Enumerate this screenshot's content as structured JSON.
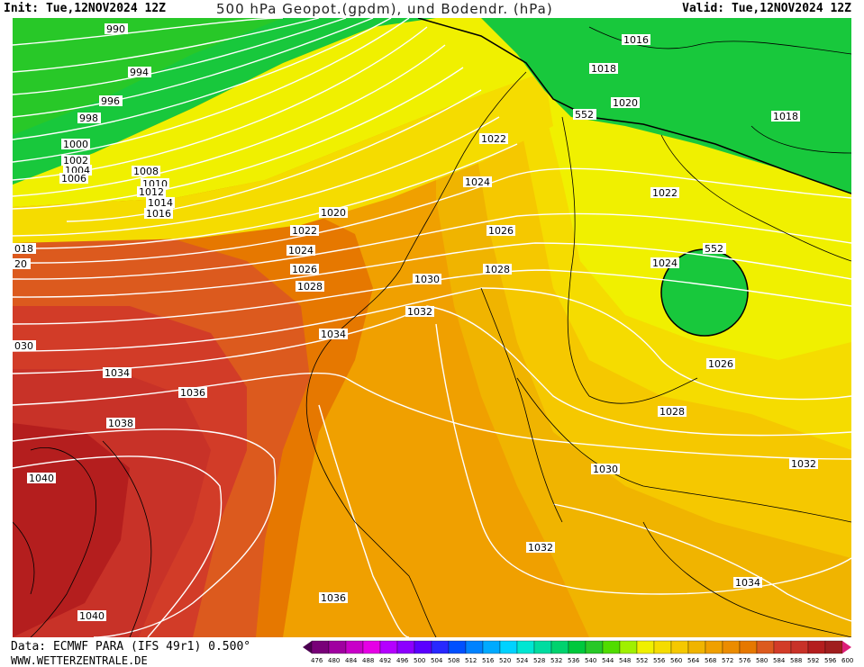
{
  "header": {
    "init": "Init: Tue,12NOV2024 12Z",
    "title": "500 hPa Geopot.(gpdm), und Bodendr. (hPa)",
    "valid": "Valid: Tue,12NOV2024 12Z"
  },
  "footer": {
    "data_source": "Data: ECMWF PARA (IFS 49r1) 0.500°",
    "website": "WWW.WETTERZENTRALE.DE"
  },
  "colors": {
    "green_low": "#18c83c",
    "yellow": "#f0f000",
    "yellow_orange": "#f5c800",
    "orange": "#f0a000",
    "dark_orange": "#e67800",
    "red_orange": "#dc5a1e",
    "red": "#c83228",
    "dark_red": "#a01e1e",
    "isobar": "#ffffff",
    "coast": "#000000"
  },
  "color_scale": {
    "units": "gpdm",
    "labels": [
      "476",
      "480",
      "484",
      "488",
      "492",
      "496",
      "500",
      "504",
      "508",
      "512",
      "516",
      "520",
      "524",
      "528",
      "532",
      "536",
      "540",
      "544",
      "548",
      "552",
      "556",
      "560",
      "564",
      "568",
      "572",
      "576",
      "580",
      "584",
      "588",
      "592",
      "596",
      "600"
    ],
    "colors": [
      "#4b0050",
      "#780078",
      "#a000a0",
      "#c800c8",
      "#e600e6",
      "#b400ff",
      "#8c00ff",
      "#5a00ff",
      "#2828ff",
      "#0050ff",
      "#0082ff",
      "#00aaff",
      "#00d2ff",
      "#00e6d2",
      "#00dca0",
      "#00d26e",
      "#00c83c",
      "#28c828",
      "#50dc00",
      "#a0f000",
      "#f0f000",
      "#f5dc00",
      "#f5c800",
      "#f0b400",
      "#f0a000",
      "#eb8c00",
      "#e67800",
      "#dc5a1e",
      "#d23c28",
      "#c83228",
      "#b41e1e",
      "#a01e1e",
      "#dc1e78"
    ]
  },
  "isobar_labels": [
    "990",
    "994",
    "996",
    "998",
    "1000",
    "1002",
    "1004",
    "1006",
    "1008",
    "1010",
    "1012",
    "1014",
    "1016",
    "1018",
    "1020",
    "1022",
    "1024",
    "1026",
    "1028",
    "1030",
    "1032",
    "1034",
    "1036",
    "1038",
    "1040",
    "018",
    "20",
    "030"
  ],
  "geopot_labels": [
    "552",
    "552",
    "552"
  ],
  "pressure_units": "hPa"
}
